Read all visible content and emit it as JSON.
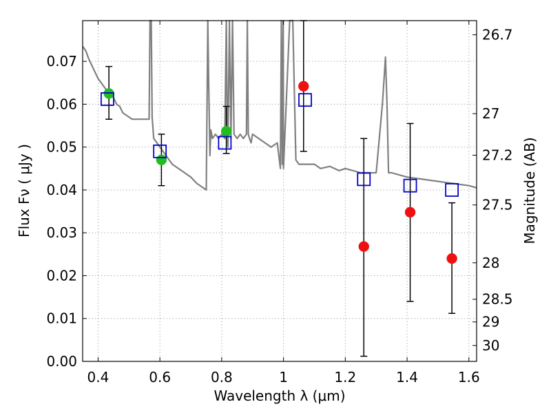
{
  "chart_data": {
    "type": "scatter",
    "title": "",
    "xlabel": "Wavelength  λ (μm)",
    "ylabel": "Flux  Fν  ( μJy )",
    "ylabel_right": "Magnitude (AB)",
    "xlim": [
      0.35,
      1.625
    ],
    "ylim": [
      0.0,
      0.0795
    ],
    "x_ticks": [
      0.4,
      0.6,
      0.8,
      1.0,
      1.2,
      1.4,
      1.6
    ],
    "x_tick_labels": [
      "0.4",
      "0.6",
      "0.8",
      "1",
      "1.2",
      "1.4",
      "1.6"
    ],
    "y_ticks": [
      0.0,
      0.01,
      0.02,
      0.03,
      0.04,
      0.05,
      0.06,
      0.07
    ],
    "y_tick_labels": [
      "0.00",
      "0.01",
      "0.02",
      "0.03",
      "0.04",
      "0.05",
      "0.06",
      "0.07"
    ],
    "right_ticks": [
      {
        "label": "26.7",
        "flux": 0.0762
      },
      {
        "label": "27",
        "flux": 0.0578
      },
      {
        "label": "27.2",
        "flux": 0.0481
      },
      {
        "label": "27.5",
        "flux": 0.0365
      },
      {
        "label": "28",
        "flux": 0.023
      },
      {
        "label": "28.5",
        "flux": 0.0145
      },
      {
        "label": "29",
        "flux": 0.0092
      },
      {
        "label": "30",
        "flux": 0.0037
      }
    ],
    "grid": true,
    "colors": {
      "model_line": "#808080",
      "green_points": "#22bb22",
      "red_points": "#ee1111",
      "model_boxes": "#0000cc",
      "error_bars": "#000000"
    },
    "series": [
      {
        "kind": "line",
        "x": [
          0.35,
          0.36,
          0.37,
          0.38,
          0.39,
          0.4,
          0.41,
          0.42,
          0.43,
          0.44,
          0.45,
          0.46,
          0.47,
          0.48,
          0.49,
          0.5,
          0.51,
          0.52,
          0.53,
          0.54,
          0.55,
          0.56,
          0.565,
          0.568,
          0.572,
          0.575,
          0.58,
          0.6,
          0.62,
          0.64,
          0.66,
          0.68,
          0.7,
          0.72,
          0.74,
          0.75,
          0.755,
          0.758,
          0.762,
          0.765,
          0.77,
          0.78,
          0.79,
          0.8,
          0.81,
          0.815,
          0.818,
          0.82,
          0.825,
          0.83,
          0.835,
          0.84,
          0.85,
          0.86,
          0.87,
          0.88,
          0.883,
          0.886,
          0.89,
          0.895,
          0.9,
          0.92,
          0.94,
          0.96,
          0.98,
          0.99,
          0.993,
          0.996,
          0.999,
          1.0,
          1.02,
          1.03,
          1.04,
          1.05,
          1.08,
          1.1,
          1.12,
          1.15,
          1.18,
          1.2,
          1.25,
          1.3,
          1.32,
          1.33,
          1.335,
          1.34,
          1.35,
          1.4,
          1.45,
          1.5,
          1.55,
          1.6,
          1.625
        ],
        "y": [
          0.0735,
          0.0725,
          0.0705,
          0.069,
          0.0675,
          0.066,
          0.065,
          0.064,
          0.063,
          0.0625,
          0.0615,
          0.06,
          0.0595,
          0.058,
          0.0575,
          0.057,
          0.0565,
          0.0565,
          0.0565,
          0.0565,
          0.0565,
          0.0565,
          0.0565,
          0.08,
          0.08,
          0.057,
          0.052,
          0.05,
          0.048,
          0.046,
          0.045,
          0.044,
          0.043,
          0.0415,
          0.0405,
          0.04,
          0.08,
          0.065,
          0.048,
          0.054,
          0.052,
          0.053,
          0.052,
          0.053,
          0.052,
          0.08,
          0.053,
          0.05,
          0.08,
          0.052,
          0.08,
          0.053,
          0.052,
          0.053,
          0.052,
          0.053,
          0.08,
          0.053,
          0.052,
          0.051,
          0.053,
          0.052,
          0.051,
          0.05,
          0.051,
          0.045,
          0.08,
          0.046,
          0.08,
          0.045,
          0.08,
          0.08,
          0.047,
          0.046,
          0.046,
          0.046,
          0.045,
          0.0455,
          0.0445,
          0.045,
          0.044,
          0.044,
          0.06,
          0.071,
          0.06,
          0.044,
          0.044,
          0.043,
          0.0425,
          0.042,
          0.0415,
          0.041,
          0.0405
        ]
      },
      {
        "kind": "points",
        "marker": "circle",
        "color": "green",
        "x": [
          0.435,
          0.605,
          0.815
        ],
        "y": [
          0.0625,
          0.047,
          0.0537
        ],
        "err_low": [
          0.0565,
          0.041,
          0.0485
        ],
        "err_high": [
          0.0688,
          0.053,
          0.0595
        ]
      },
      {
        "kind": "points",
        "marker": "circle",
        "color": "red",
        "x": [
          1.065,
          1.26,
          1.41,
          1.545
        ],
        "y": [
          0.0642,
          0.0268,
          0.0348,
          0.024
        ],
        "err_low": [
          0.049,
          0.0012,
          0.014,
          0.0112
        ],
        "err_high": [
          0.0795,
          0.052,
          0.0555,
          0.037
        ]
      },
      {
        "kind": "points",
        "marker": "square",
        "color": "blue",
        "x": [
          0.43,
          0.6,
          0.81,
          1.07,
          1.26,
          1.41,
          1.545
        ],
        "y": [
          0.0612,
          0.049,
          0.051,
          0.061,
          0.0425,
          0.041,
          0.04
        ]
      }
    ]
  }
}
